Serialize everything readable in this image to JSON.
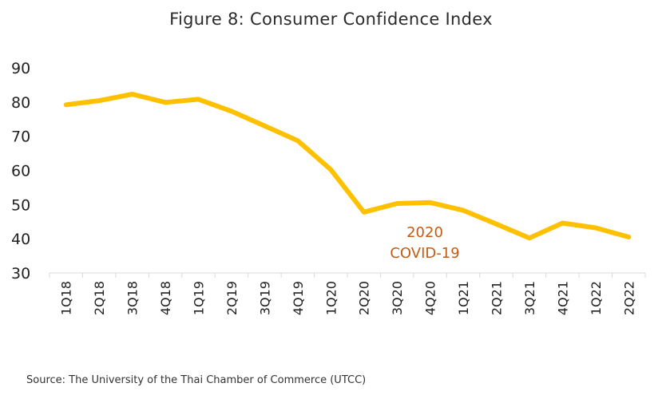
{
  "title": "Figure 8: Consumer Confidence Index",
  "source": "Source: The University of the Thai Chamber of Commerce (UTCC)",
  "chart_data": {
    "type": "line",
    "title": "Figure 8: Consumer Confidence Index",
    "xlabel": "",
    "ylabel": "",
    "categories": [
      "1Q18",
      "2Q18",
      "3Q18",
      "4Q18",
      "1Q19",
      "2Q19",
      "3Q19",
      "4Q19",
      "1Q20",
      "2Q20",
      "3Q20",
      "4Q20",
      "1Q21",
      "2Q21",
      "3Q21",
      "4Q21",
      "1Q22",
      "2Q22"
    ],
    "series": [
      {
        "values": [
          79.2,
          80.4,
          82.3,
          79.9,
          80.8,
          77.3,
          73.0,
          68.7,
          60.2,
          47.8,
          50.3,
          50.6,
          48.3,
          44.3,
          40.2,
          44.6,
          43.2,
          40.5
        ],
        "color": "#FFC000"
      }
    ],
    "ylim": [
      30,
      90
    ],
    "yticks": [
      30,
      40,
      50,
      60,
      70,
      80,
      90
    ],
    "grid": false,
    "annotations": [
      {
        "lines": [
          "2020",
          "COVID-19"
        ],
        "color": "#C55A11"
      }
    ]
  }
}
